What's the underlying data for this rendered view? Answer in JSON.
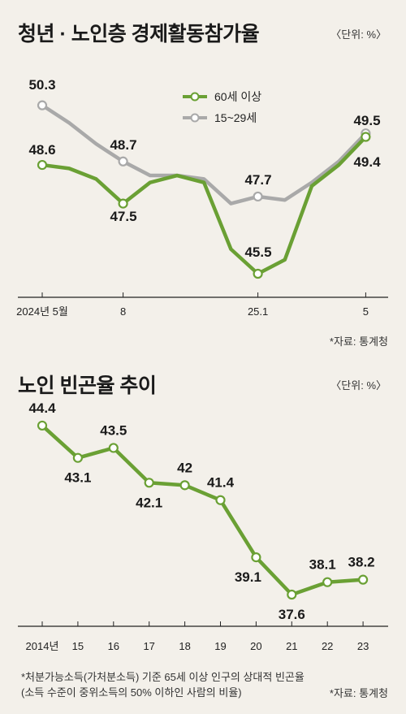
{
  "chart_data": [
    {
      "type": "line",
      "title": "청년 · 노인층 경제활동참가율",
      "unit": "〈단위: %〉",
      "source": "*자료: 통계청",
      "x_tick_labels": [
        "2024년 5월",
        "8",
        "25.1",
        "5"
      ],
      "series": [
        {
          "name": "60세 이상",
          "color": "#6aa034",
          "values": [
            48.6,
            48.5,
            48.2,
            47.5,
            48.1,
            48.3,
            48.1,
            46.2,
            45.5,
            45.9,
            48.0,
            48.6,
            49.4
          ],
          "labels": [
            {
              "index": 0,
              "text": "48.6"
            },
            {
              "index": 3,
              "text": "47.5"
            },
            {
              "index": 8,
              "text": "45.5"
            },
            {
              "index": 12,
              "text": "49.4"
            }
          ]
        },
        {
          "name": "15~29세",
          "color": "#a9a9a9",
          "values": [
            50.3,
            49.8,
            49.2,
            48.7,
            48.3,
            48.3,
            48.2,
            47.5,
            47.7,
            47.6,
            48.1,
            48.7,
            49.5
          ],
          "labels": [
            {
              "index": 0,
              "text": "50.3"
            },
            {
              "index": 3,
              "text": "48.7"
            },
            {
              "index": 8,
              "text": "47.7"
            },
            {
              "index": 12,
              "text": "49.5"
            }
          ]
        }
      ]
    },
    {
      "type": "line",
      "title": "노인 빈곤율 추이",
      "unit": "〈단위: %〉",
      "source": "*자료: 통계청",
      "notes": [
        "*처분가능소득(가처분소득) 기준 65세 이상 인구의 상대적 빈곤율",
        "(소득 수준이 중위소득의 50% 이하인 사람의 비율)"
      ],
      "categories": [
        "2014년",
        "15",
        "16",
        "17",
        "18",
        "19",
        "20",
        "21",
        "22",
        "23"
      ],
      "series": [
        {
          "color": "#6aa034",
          "values": [
            44.4,
            43.1,
            43.5,
            42.1,
            42.0,
            41.4,
            39.1,
            37.6,
            38.1,
            38.2
          ],
          "labels": [
            "44.4",
            "43.1",
            "43.5",
            "42.1",
            "42",
            "41.4",
            "39.1",
            "37.6",
            "38.1",
            "38.2"
          ]
        }
      ]
    }
  ]
}
